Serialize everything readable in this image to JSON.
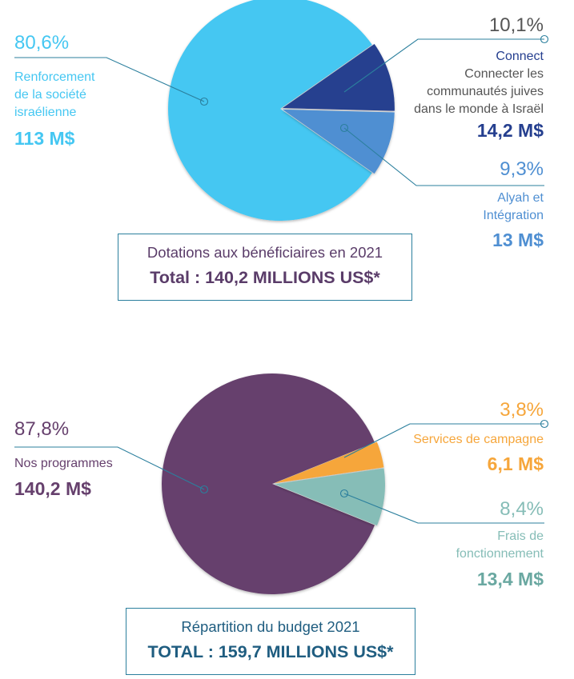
{
  "chart_data": [
    {
      "type": "pie",
      "title": "Dotations aux bénéficiaires en 2021",
      "total_label": "Total : 140,2 MILLIONS US$*",
      "slices": [
        {
          "percent_label": "80,6%",
          "value": 80.6,
          "name_lines": [
            "Renforcement",
            "de la société",
            "israélienne"
          ],
          "amount": "113 M$",
          "color": "#45c7f2"
        },
        {
          "percent_label": "10,1%",
          "value": 10.1,
          "name_lines": [
            "Connect",
            "Connecter les",
            "communautés juives",
            "dans le monde à Israël"
          ],
          "amount": "14,2 M$",
          "color": "#253f8f"
        },
        {
          "percent_label": "9,3%",
          "value": 9.3,
          "name_lines": [
            "Alyah et",
            "Intégration"
          ],
          "amount": "13 M$",
          "color": "#4f8fd2"
        }
      ]
    },
    {
      "type": "pie",
      "title": "Répartition du budget 2021",
      "total_label": "TOTAL : 159,7 MILLIONS US$*",
      "slices": [
        {
          "percent_label": "87,8%",
          "value": 87.8,
          "name_lines": [
            "Nos programmes"
          ],
          "amount": "140,2 M$",
          "color": "#66406d"
        },
        {
          "percent_label": "3,8%",
          "value": 3.8,
          "name_lines": [
            "Services de campagne"
          ],
          "amount": "6,1 M$",
          "color": "#f6a63b"
        },
        {
          "percent_label": "8,4%",
          "value": 8.4,
          "name_lines": [
            "Frais de",
            "fonctionnement"
          ],
          "amount": "13,4 M$",
          "color": "#86bdb7"
        }
      ]
    }
  ],
  "colors": {
    "leader_line": "#2b7f9d",
    "box_border": "#2b7f9d",
    "title_text": "#5a3c69",
    "total1_text": "#5a3c69",
    "total2_text": "#1f5d80",
    "chart1_main_text": "#45c7f2",
    "chart1_connect_text": "#253f8f",
    "chart1_alyah_text": "#4f8fd2",
    "chart2_main_text": "#66406d",
    "chart2_services_text": "#f6a63b",
    "chart2_frais_text": "#86bdb7",
    "chart2_frais_amount": "#6aa8a1",
    "gray_text": "#555555"
  }
}
